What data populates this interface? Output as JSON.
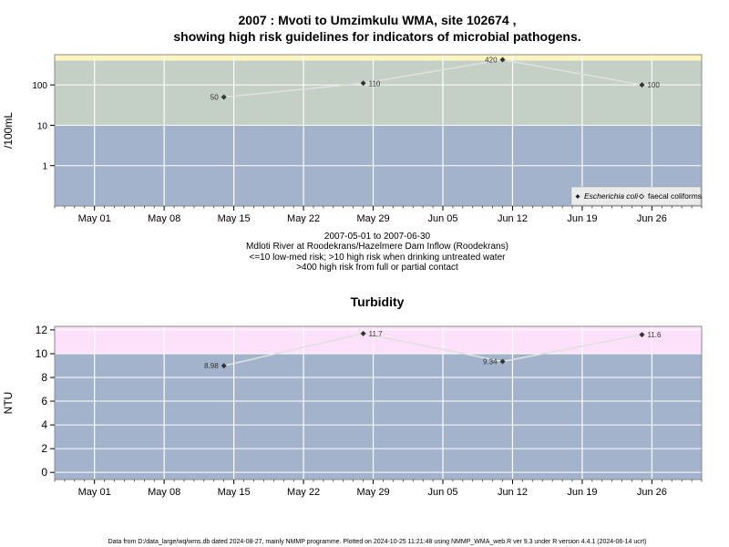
{
  "title_line1": "2007 : Mvoti to Umzimkulu WMA, site 102674 ,",
  "title_line2": "showing high risk guidelines for indicators of microbial pathogens.",
  "caption": {
    "line1": "2007-05-01 to 2007-06-30",
    "line2": "Mdloti River at Roodekrans/Hazelmere Dam Inflow (Roodekrans)",
    "line3": "<=10 low-med risk; >10 high risk when drinking untreated water",
    "line4": ">400 high risk from full or partial contact"
  },
  "footer": "Data from D:/data_large/wq/wms.db dated 2024-08-27, mainly NMMP programme. Plotted on 2024-10-25 11:21:48 using NMMP_WMA_web.R ver 9.3 under R version 4.4.1 (2024-06-14 ucrt)",
  "colors": {
    "low_band": "#a2b3cb",
    "mid_band": "#c4cfc5",
    "high_band": "#fdf5c0",
    "turb_high_band": "#fde0fa",
    "grid": "#ffffff",
    "line": "#e0e0e0",
    "point": "#333333"
  },
  "chart_data": [
    {
      "type": "line",
      "title": "",
      "ylabel": "/100mL",
      "yscale": "log",
      "xlim": [
        "2007-04-27",
        "2007-07-01"
      ],
      "ylim": [
        0.1,
        560
      ],
      "x_ticks": [
        "2007-05-01",
        "2007-05-08",
        "2007-05-15",
        "2007-05-22",
        "2007-05-29",
        "2007-06-05",
        "2007-06-12",
        "2007-06-19",
        "2007-06-26"
      ],
      "x_tick_labels": [
        "May 01",
        "May 08",
        "May 15",
        "May 22",
        "May 29",
        "Jun 05",
        "Jun 12",
        "Jun 19",
        "Jun 26"
      ],
      "y_ticks": [
        1,
        10,
        100
      ],
      "y_tick_labels": [
        "1",
        "10",
        "100"
      ],
      "bands": [
        {
          "from": 0.1,
          "to": 10,
          "color": "#a2b3cb"
        },
        {
          "from": 10,
          "to": 400,
          "color": "#c4cfc5"
        },
        {
          "from": 400,
          "to": 560,
          "color": "#fdf5c0"
        }
      ],
      "grid": true,
      "legend_position": "bottom-right",
      "legend": [
        {
          "label": "Escherichia coli",
          "marker": "filled-diamond",
          "italic": true
        },
        {
          "label": "faecal coliforms",
          "marker": "open-diamond",
          "italic": false
        }
      ],
      "series": [
        {
          "name": "Escherichia coli",
          "x": [
            "2007-05-14",
            "2007-05-28",
            "2007-06-11",
            "2007-06-25"
          ],
          "values": [
            50,
            110,
            420,
            100
          ],
          "labels": [
            "50",
            "110",
            "420",
            "100"
          ]
        }
      ]
    },
    {
      "type": "line",
      "title": "Turbidity",
      "ylabel": "NTU",
      "yscale": "linear",
      "xlim": [
        "2007-04-27",
        "2007-07-01"
      ],
      "ylim": [
        -0.6,
        12.3
      ],
      "x_ticks": [
        "2007-05-01",
        "2007-05-08",
        "2007-05-15",
        "2007-05-22",
        "2007-05-29",
        "2007-06-05",
        "2007-06-12",
        "2007-06-19",
        "2007-06-26"
      ],
      "x_tick_labels": [
        "May 01",
        "May 08",
        "May 15",
        "May 22",
        "May 29",
        "Jun 05",
        "Jun 12",
        "Jun 19",
        "Jun 26"
      ],
      "y_ticks": [
        0,
        2,
        4,
        6,
        8,
        10,
        12
      ],
      "y_tick_labels": [
        "0",
        "2",
        "4",
        "6",
        "8",
        "10",
        "12"
      ],
      "bands": [
        {
          "from": -0.6,
          "to": 10,
          "color": "#a2b3cb"
        },
        {
          "from": 10,
          "to": 12.3,
          "color": "#fde0fa"
        }
      ],
      "grid": true,
      "series": [
        {
          "name": "",
          "x": [
            "2007-05-14",
            "2007-05-28",
            "2007-06-11",
            "2007-06-25"
          ],
          "values": [
            8.98,
            11.7,
            9.34,
            11.6
          ],
          "labels": [
            "8.98",
            "11.7",
            "9.34",
            "11.6"
          ]
        }
      ]
    }
  ]
}
